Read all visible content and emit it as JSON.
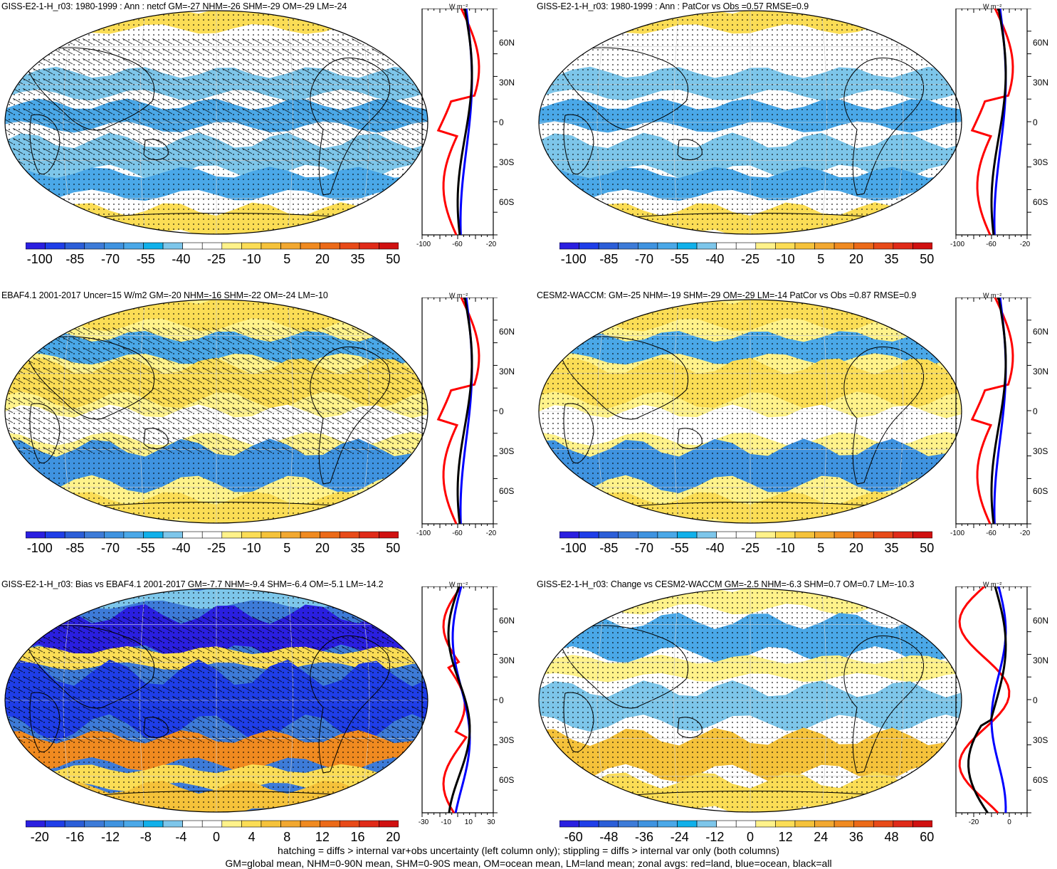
{
  "panels": [
    {
      "title": "GISS-E2-1-H_r03: 1980-1999 : Ann : netcf GM=-27 NHM=-26 SHM=-29 OM=-29 LM=-24",
      "colorbar_labels": [
        "-100",
        "-85",
        "-70",
        "-55",
        "-40",
        "-25",
        "-10",
        "5",
        "20",
        "35",
        "50"
      ],
      "zonal_x_labels": [
        "-100",
        "-60",
        "-20"
      ],
      "palette": "blue",
      "hatching": true
    },
    {
      "title": "GISS-E2-1-H_r03: 1980-1999 : Ann : PatCor vs Obs =0.57 RMSE=0.9",
      "colorbar_labels": [
        "-100",
        "-85",
        "-70",
        "-55",
        "-40",
        "-25",
        "-10",
        "5",
        "20",
        "35",
        "50"
      ],
      "zonal_x_labels": [
        "-100",
        "-60",
        "-20"
      ],
      "palette": "blue",
      "hatching": false
    },
    {
      "title": "EBAF4.1 2001-2017 Uncer=15 W/m2 GM=-20 NHM=-16 SHM=-22 OM=-24 LM=-10",
      "colorbar_labels": [
        "-100",
        "-85",
        "-70",
        "-55",
        "-40",
        "-25",
        "-10",
        "5",
        "20",
        "35",
        "50"
      ],
      "zonal_x_labels": [
        "-100",
        "-60",
        "-20"
      ],
      "palette": "mixed",
      "hatching": true
    },
    {
      "title": "CESM2-WACCM: GM=-25 NHM=-19 SHM=-29 OM=-29 LM=-14 PatCor vs Obs =0.87 RMSE=0.9",
      "colorbar_labels": [
        "-100",
        "-85",
        "-70",
        "-55",
        "-40",
        "-25",
        "-10",
        "5",
        "20",
        "35",
        "50"
      ],
      "zonal_x_labels": [
        "-100",
        "-60",
        "-20"
      ],
      "palette": "mixed",
      "hatching": false
    },
    {
      "title": "GISS-E2-1-H_r03: Bias vs EBAF4.1 2001-2017 GM=-7.7 NHM=-9.4 SHM=-6.4 OM=-5.1 LM=-14.2",
      "colorbar_labels": [
        "-20",
        "-16",
        "-12",
        "-8",
        "-4",
        "0",
        "4",
        "8",
        "12",
        "16",
        "20"
      ],
      "zonal_x_labels": [
        "-30",
        "-10",
        "10",
        "30"
      ],
      "palette": "bias",
      "hatching": true
    },
    {
      "title": "GISS-E2-1-H_r03: Change vs CESM2-WACCM GM=-2.5 NHM=-6.3 SHM=0.7 OM=0.7 LM=-10.3",
      "colorbar_labels": [
        "-60",
        "-48",
        "-36",
        "-24",
        "-12",
        "0",
        "12",
        "24",
        "36",
        "48",
        "60"
      ],
      "zonal_x_labels": [
        "-20",
        "0"
      ],
      "palette": "change",
      "hatching": false
    }
  ],
  "lat_labels": [
    "60N",
    "30N",
    "0",
    "30S",
    "60S"
  ],
  "units_label": "W m⁻²",
  "colors": {
    "palette": [
      "#2a1fe0",
      "#1f3ee8",
      "#2b5ed8",
      "#3d7bd8",
      "#3f93e0",
      "#4aa8e8",
      "#10b0ea",
      "#7dc6ea",
      "#ffffff",
      "#ffffff",
      "#fff28a",
      "#fbdd55",
      "#f5c23a",
      "#f2a830",
      "#f08a20",
      "#ec6a18",
      "#e84a18",
      "#e02a18",
      "#d01010"
    ],
    "land_red": "#ff0000",
    "ocean_blue": "#0000ff",
    "all_black": "#000000"
  },
  "footer_line1": "hatching = diffs > internal var+obs uncertainty (left column only); stippling = diffs > internal var only (both columns)",
  "footer_line2": "GM=global mean, NHM=0-90N mean, SHM=0-90S mean, OM=ocean mean, LM=land mean; zonal avgs: red=land, blue=ocean, black=all"
}
